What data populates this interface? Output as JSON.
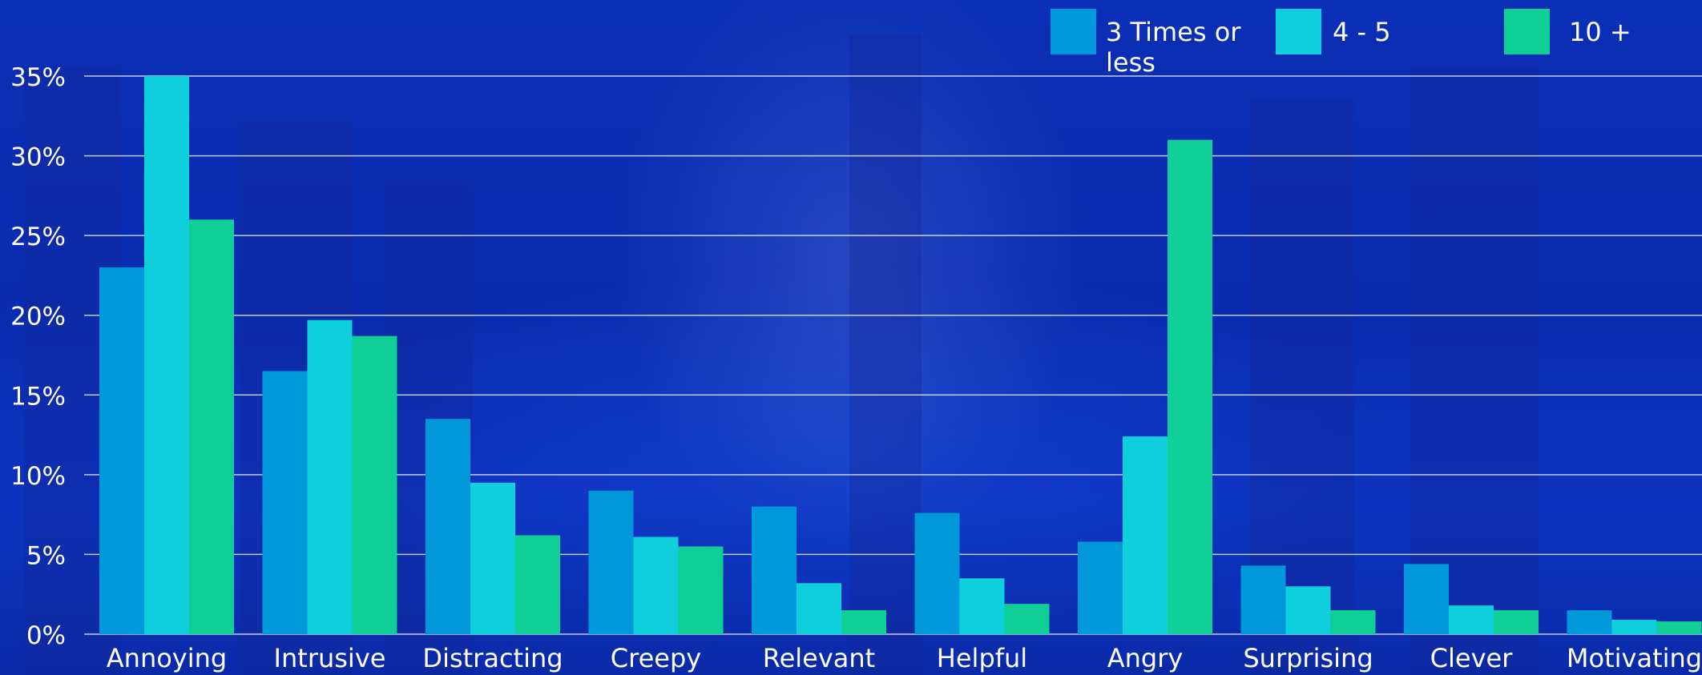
{
  "chart_data": {
    "type": "bar",
    "categories": [
      "Annoying",
      "Intrusive",
      "Distracting",
      "Creepy",
      "Relevant",
      "Helpful",
      "Angry",
      "Surprising",
      "Clever",
      "Motivating"
    ],
    "series": [
      {
        "name": "3 Times or less",
        "color": "#0098db",
        "values": [
          23,
          16.5,
          13.5,
          9,
          8,
          7.6,
          5.8,
          4.3,
          4.4,
          1.5
        ]
      },
      {
        "name": "4 - 5",
        "color": "#0fcfdc",
        "values": [
          35,
          19.7,
          9.5,
          6.1,
          3.2,
          3.5,
          12.4,
          3.0,
          1.8,
          0.9
        ]
      },
      {
        "name": "10 +",
        "color": "#0fce96",
        "values": [
          26,
          18.7,
          6.2,
          5.5,
          1.5,
          1.9,
          31,
          1.5,
          1.5,
          0.8
        ]
      }
    ],
    "y_ticks": [
      "0%",
      "5%",
      "10%",
      "15%",
      "20%",
      "25%",
      "30%",
      "35%"
    ],
    "ylim": [
      0,
      35
    ],
    "grid": true,
    "legend": "top-right",
    "title": "",
    "xlabel": "",
    "ylabel": ""
  }
}
